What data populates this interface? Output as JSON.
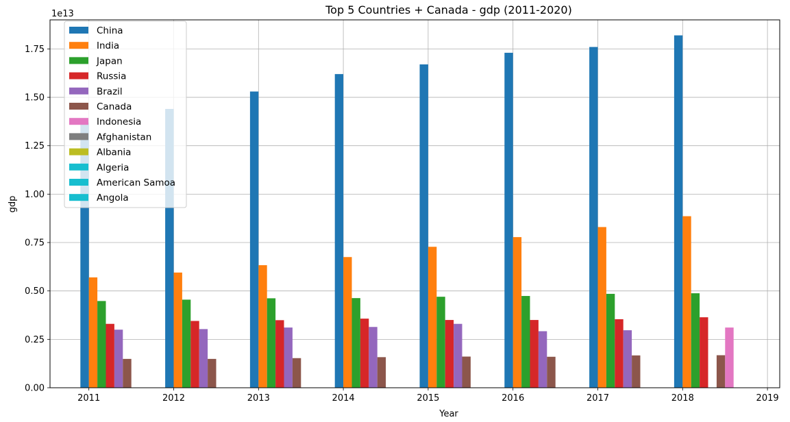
{
  "chart_data": {
    "type": "bar",
    "title": "Top 5 Countries + Canada - gdp (2011-2020)",
    "xlabel": "Year",
    "ylabel": "gdp",
    "y_offset_label": "1e13",
    "y_scale_factor": 10000000000000,
    "ylim": [
      0,
      1.9
    ],
    "y_ticks": [
      "0.00",
      "0.25",
      "0.50",
      "0.75",
      "1.00",
      "1.25",
      "1.50",
      "1.75"
    ],
    "y_tick_values": [
      0,
      0.25,
      0.5,
      0.75,
      1.0,
      1.25,
      1.5,
      1.75
    ],
    "x_ticks": [
      "2011",
      "2012",
      "2013",
      "2014",
      "2015",
      "2016",
      "2017",
      "2018",
      "2019"
    ],
    "grid": true,
    "legend_position": "top-left",
    "series": [
      {
        "name": "China",
        "color": "#1f77b4",
        "values": [
          1.37,
          1.44,
          1.53,
          1.62,
          1.67,
          1.73,
          1.76,
          1.82,
          null
        ]
      },
      {
        "name": "India",
        "color": "#ff7f0e",
        "values": [
          0.57,
          0.595,
          0.633,
          0.675,
          0.728,
          0.778,
          0.83,
          0.886,
          null
        ]
      },
      {
        "name": "Japan",
        "color": "#2ca02c",
        "values": [
          0.448,
          0.455,
          0.462,
          0.463,
          0.47,
          0.474,
          0.485,
          0.488,
          null
        ]
      },
      {
        "name": "Russia",
        "color": "#d62728",
        "values": [
          0.33,
          0.345,
          0.349,
          0.357,
          0.35,
          0.35,
          0.354,
          0.364,
          null
        ]
      },
      {
        "name": "Brazil",
        "color": "#9467bd",
        "values": [
          0.3,
          0.303,
          0.311,
          0.314,
          0.33,
          0.292,
          0.297,
          null,
          null
        ]
      },
      {
        "name": "Canada",
        "color": "#8c564b",
        "values": [
          0.149,
          0.149,
          0.153,
          0.158,
          0.161,
          0.16,
          0.167,
          0.168,
          null
        ]
      },
      {
        "name": "Indonesia",
        "color": "#e377c2",
        "values": [
          null,
          null,
          null,
          null,
          null,
          null,
          null,
          0.311,
          null
        ]
      },
      {
        "name": "Afghanistan",
        "color": "#7f7f7f",
        "values": [
          null,
          null,
          null,
          null,
          null,
          null,
          null,
          null,
          null
        ]
      },
      {
        "name": "Albania",
        "color": "#bcbd22",
        "values": [
          null,
          null,
          null,
          null,
          null,
          null,
          null,
          null,
          null
        ]
      },
      {
        "name": "Algeria",
        "color": "#17becf",
        "values": [
          null,
          null,
          null,
          null,
          null,
          null,
          null,
          null,
          null
        ]
      },
      {
        "name": "American Samoa",
        "color": "#17becf",
        "values": [
          null,
          null,
          null,
          null,
          null,
          null,
          null,
          null,
          null
        ]
      },
      {
        "name": "Angola",
        "color": "#17becf",
        "values": [
          null,
          null,
          null,
          null,
          null,
          null,
          null,
          null,
          null
        ]
      }
    ]
  }
}
